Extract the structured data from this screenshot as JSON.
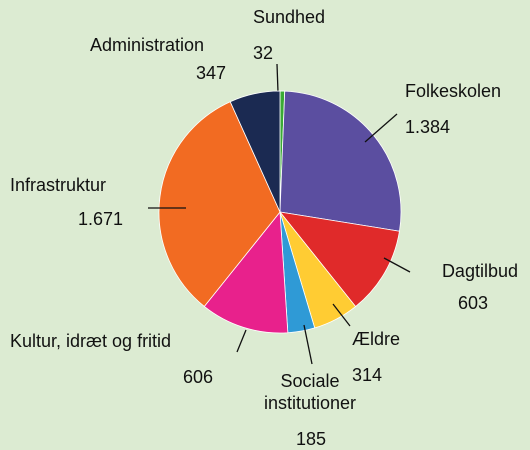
{
  "chart_data": {
    "type": "pie",
    "categories": [
      "Sundhed",
      "Folkeskolen",
      "Dagtilbud",
      "Ældre",
      "Sociale institutioner",
      "Kultur, idræt og fritid",
      "Infrastruktur",
      "Administration"
    ],
    "values": [
      32,
      1384,
      603,
      314,
      185,
      606,
      1671,
      347
    ],
    "value_labels": [
      "32",
      "1.384",
      "603",
      "314",
      "185",
      "606",
      "1.671",
      "347"
    ],
    "colors": [
      "#3aaa35",
      "#5b4ea0",
      "#e02a2a",
      "#ffcc33",
      "#2f9ad6",
      "#e8218c",
      "#f26b22",
      "#1b2a52"
    ]
  }
}
